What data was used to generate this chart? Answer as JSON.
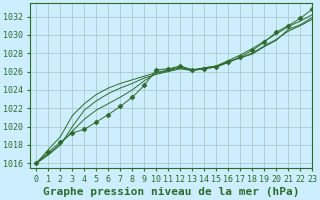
{
  "title": "Graphe pression niveau de la mer (hPa)",
  "bg_color": "#cceeff",
  "grid_color": "#aacccc",
  "line_color": "#2d6b2d",
  "xlim": [
    -0.5,
    23
  ],
  "ylim": [
    1015.5,
    1033.5
  ],
  "yticks": [
    1016,
    1018,
    1020,
    1022,
    1024,
    1026,
    1028,
    1030,
    1032
  ],
  "xticks": [
    0,
    1,
    2,
    3,
    4,
    5,
    6,
    7,
    8,
    9,
    10,
    11,
    12,
    13,
    14,
    15,
    16,
    17,
    18,
    19,
    20,
    21,
    22,
    23
  ],
  "series": [
    [
      1016.0,
      1017.2,
      1018.3,
      1019.3,
      1019.7,
      1020.5,
      1021.3,
      1022.2,
      1023.2,
      1024.5,
      1026.2,
      1026.3,
      1026.6,
      1026.2,
      1026.3,
      1026.5,
      1027.0,
      1027.6,
      1028.3,
      1029.2,
      1030.3,
      1031.0,
      1031.8,
      1032.8
    ],
    [
      1016.0,
      1017.0,
      1018.1,
      1019.5,
      1020.8,
      1021.8,
      1022.5,
      1023.2,
      1024.0,
      1025.0,
      1025.8,
      1026.1,
      1026.4,
      1026.2,
      1026.4,
      1026.6,
      1027.2,
      1027.8,
      1028.5,
      1029.3,
      1030.1,
      1030.9,
      1031.5,
      1032.2
    ],
    [
      1016.0,
      1016.9,
      1018.0,
      1020.0,
      1021.8,
      1022.8,
      1023.6,
      1024.2,
      1024.7,
      1025.3,
      1025.7,
      1026.0,
      1026.3,
      1026.1,
      1026.3,
      1026.5,
      1027.0,
      1027.5,
      1028.0,
      1028.8,
      1029.5,
      1030.4,
      1031.0,
      1031.7
    ],
    [
      1016.0,
      1017.5,
      1018.9,
      1021.2,
      1022.5,
      1023.5,
      1024.2,
      1024.7,
      1025.1,
      1025.5,
      1025.9,
      1026.2,
      1026.5,
      1026.1,
      1026.4,
      1026.6,
      1027.1,
      1027.5,
      1027.9,
      1028.7,
      1029.4,
      1030.6,
      1031.1,
      1031.9
    ]
  ],
  "marker_series": 0,
  "marker_style": "D",
  "marker_size": 2.5,
  "font_family": "monospace",
  "title_fontsize": 8,
  "tick_fontsize": 6
}
